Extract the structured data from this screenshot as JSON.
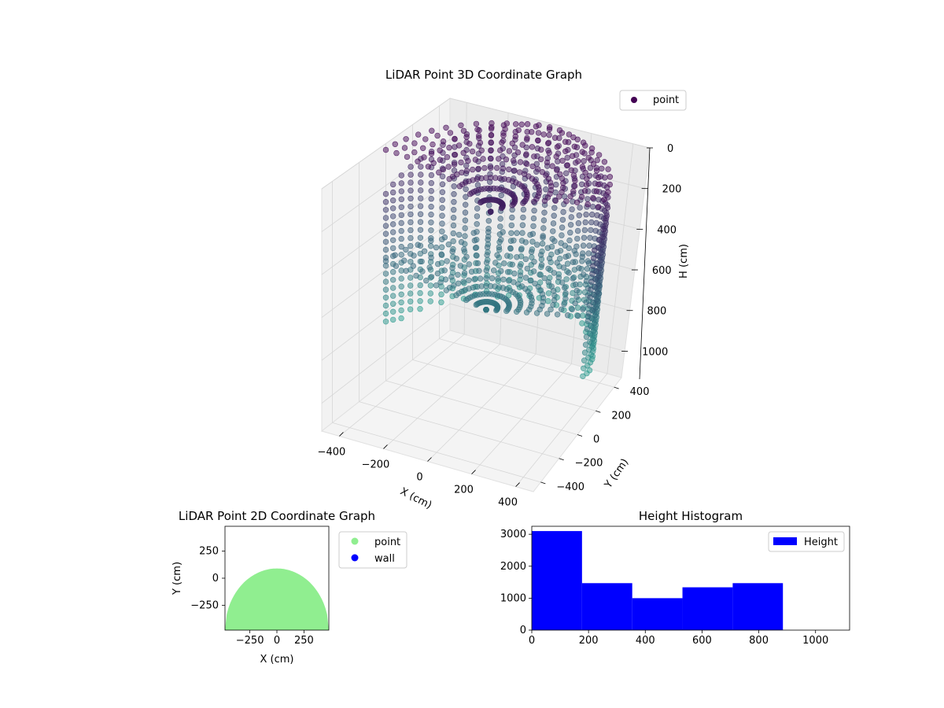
{
  "chart_data": [
    {
      "type": "scatter3d",
      "title": "LiDAR Point 3D Coordinate Graph",
      "xlabel": "X (cm)",
      "ylabel": "Y (cm)",
      "zlabel": "H (cm)",
      "legend": {
        "entries": [
          "point"
        ],
        "placement": "top-right"
      },
      "colormap": "viridis",
      "xticks": [
        "−400",
        "−200",
        "0",
        "200",
        "400"
      ],
      "yticks": [
        "−400",
        "−200",
        "0",
        "200",
        "400"
      ],
      "zticks": [
        "0",
        "200",
        "400",
        "600",
        "800",
        "1000"
      ],
      "xlim": [
        -480,
        480
      ],
      "ylim": [
        -480,
        480
      ],
      "zlim": [
        0,
        1130
      ],
      "z_inverted": true,
      "grid": true,
      "shape": "half-cylinder wall of radius ~480 cm with a domed top, heights 0–880 cm",
      "point_color_start": "#440154",
      "point_color_end": "#2a9d8f"
    },
    {
      "type": "scatter",
      "title": "LiDAR Point 2D Coordinate Graph",
      "xlabel": "X (cm)",
      "ylabel": "Y (cm)",
      "xticks": [
        "−250",
        "0",
        "250"
      ],
      "yticks": [
        "250",
        "0",
        "−250"
      ],
      "xlim": [
        -480,
        480
      ],
      "ylim": [
        -480,
        480
      ],
      "legend": {
        "entries": [
          "point",
          "wall"
        ],
        "placement": "outside-right"
      },
      "series": [
        {
          "name": "point",
          "color": "#90ee90",
          "region": "half-disc, y from -480 up to ~90 at x=0"
        },
        {
          "name": "wall",
          "color": "#0000ff"
        }
      ]
    },
    {
      "type": "bar",
      "title": "Height Histogram",
      "legend": {
        "entries": [
          "Height"
        ],
        "placement": "top-right"
      },
      "xticks": [
        "0",
        "200",
        "400",
        "600",
        "800",
        "1000"
      ],
      "yticks": [
        "0",
        "1000",
        "2000",
        "3000"
      ],
      "xlim": [
        0,
        1120
      ],
      "ylim": [
        0,
        3250
      ],
      "color": "#0000ff",
      "bins": [
        {
          "x0": 0,
          "x1": 177,
          "count": 3100
        },
        {
          "x0": 177,
          "x1": 354,
          "count": 1470
        },
        {
          "x0": 354,
          "x1": 531,
          "count": 1000
        },
        {
          "x0": 531,
          "x1": 708,
          "count": 1340
        },
        {
          "x0": 708,
          "x1": 885,
          "count": 1470
        }
      ]
    }
  ]
}
